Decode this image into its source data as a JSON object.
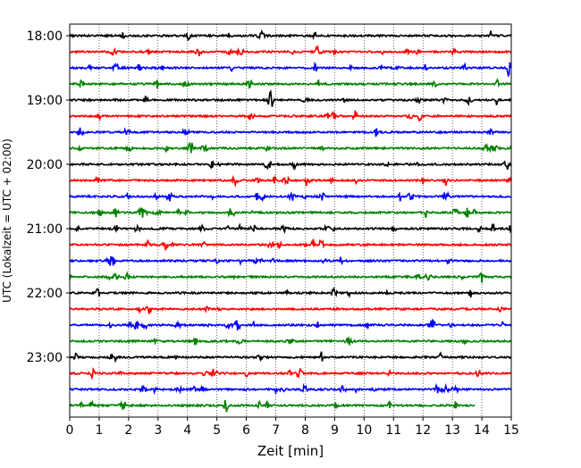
{
  "chart_data": {
    "type": "line",
    "subtype": "helicorder",
    "title": "",
    "xlabel": "Zeit  [min]",
    "ylabel": "UTC (Lokalzeit = UTC + 02:00)",
    "xlim": [
      0,
      15
    ],
    "x_ticks": [
      0,
      1,
      2,
      3,
      4,
      5,
      6,
      7,
      8,
      9,
      10,
      11,
      12,
      13,
      14,
      15
    ],
    "x_tick_labels": [
      "0",
      "1",
      "2",
      "3",
      "4",
      "5",
      "6",
      "7",
      "8",
      "9",
      "10",
      "11",
      "12",
      "13",
      "14",
      "15"
    ],
    "y_ticks": [
      "18:00",
      "19:00",
      "20:00",
      "21:00",
      "22:00",
      "23:00"
    ],
    "grid": "vertical dotted lines at each minute",
    "legend": "none",
    "trace_interval_minutes": 15,
    "trace_color_cycle": [
      "#000000",
      "#ff0000",
      "#0000ff",
      "#008000"
    ],
    "traces": [
      {
        "start": "18:00",
        "end_minute": 15
      },
      {
        "start": "18:15",
        "end_minute": 15
      },
      {
        "start": "18:30",
        "end_minute": 15
      },
      {
        "start": "18:45",
        "end_minute": 15
      },
      {
        "start": "19:00",
        "end_minute": 15
      },
      {
        "start": "19:15",
        "end_minute": 15
      },
      {
        "start": "19:30",
        "end_minute": 15
      },
      {
        "start": "19:45",
        "end_minute": 15
      },
      {
        "start": "20:00",
        "end_minute": 15
      },
      {
        "start": "20:15",
        "end_minute": 15
      },
      {
        "start": "20:30",
        "end_minute": 15
      },
      {
        "start": "20:45",
        "end_minute": 15
      },
      {
        "start": "21:00",
        "end_minute": 15
      },
      {
        "start": "21:15",
        "end_minute": 15
      },
      {
        "start": "21:30",
        "end_minute": 15
      },
      {
        "start": "21:45",
        "end_minute": 15
      },
      {
        "start": "22:00",
        "end_minute": 15
      },
      {
        "start": "22:15",
        "end_minute": 15
      },
      {
        "start": "22:30",
        "end_minute": 15
      },
      {
        "start": "22:45",
        "end_minute": 15
      },
      {
        "start": "23:00",
        "end_minute": 15
      },
      {
        "start": "23:15",
        "end_minute": 15
      },
      {
        "start": "23:30",
        "end_minute": 15
      },
      {
        "start": "23:45",
        "end_minute": 13.75
      }
    ]
  }
}
